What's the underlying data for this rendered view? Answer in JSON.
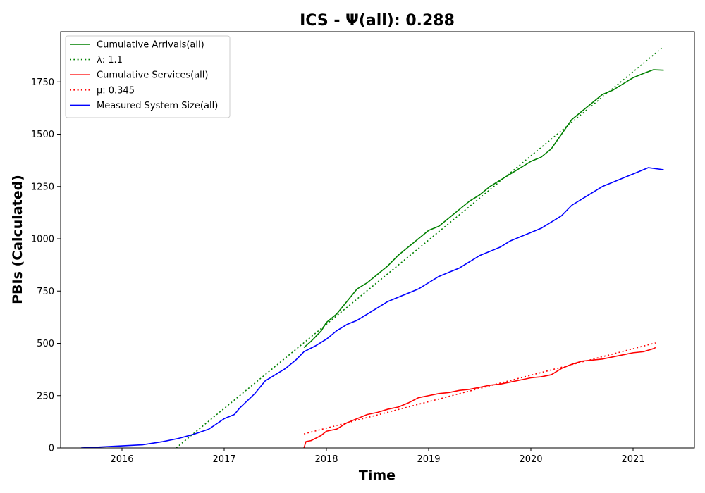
{
  "chart_data": {
    "type": "line",
    "title": "ICS -  Ψ(all): 0.288",
    "xlabel": "Time",
    "ylabel": "PBIs (Calculated)",
    "xlim": [
      2015.4,
      2021.6
    ],
    "ylim": [
      0,
      1990
    ],
    "x_ticks": [
      2016,
      2017,
      2018,
      2019,
      2020,
      2021
    ],
    "x_tick_labels": [
      "2016",
      "2017",
      "2018",
      "2019",
      "2020",
      "2021"
    ],
    "y_ticks": [
      0,
      250,
      500,
      750,
      1000,
      1250,
      1500,
      1750
    ],
    "y_tick_labels": [
      "0",
      "250",
      "500",
      "750",
      "1000",
      "1250",
      "1500",
      "1750"
    ],
    "grid": false,
    "legend_position": "top-left",
    "series": [
      {
        "name": "Cumulative Arrivals(all)",
        "color": "#008000",
        "style": "solid",
        "x": [
          2017.78,
          2017.85,
          2017.95,
          2018.0,
          2018.1,
          2018.2,
          2018.3,
          2018.4,
          2018.5,
          2018.6,
          2018.7,
          2018.8,
          2018.9,
          2019.0,
          2019.1,
          2019.2,
          2019.3,
          2019.4,
          2019.5,
          2019.6,
          2019.7,
          2019.8,
          2019.9,
          2020.0,
          2020.1,
          2020.2,
          2020.3,
          2020.4,
          2020.5,
          2020.6,
          2020.7,
          2020.8,
          2020.9,
          2021.0,
          2021.1,
          2021.2,
          2021.3
        ],
        "y": [
          480,
          510,
          560,
          600,
          640,
          700,
          760,
          790,
          830,
          870,
          920,
          960,
          1000,
          1040,
          1060,
          1100,
          1140,
          1180,
          1210,
          1250,
          1280,
          1310,
          1340,
          1370,
          1390,
          1430,
          1500,
          1570,
          1610,
          1650,
          1690,
          1710,
          1740,
          1770,
          1790,
          1808,
          1806
        ]
      },
      {
        "name": "λ: 1.1",
        "color": "#008000",
        "style": "dotted",
        "x": [
          2016.53,
          2021.29
        ],
        "y": [
          0,
          1915
        ]
      },
      {
        "name": "Cumulative Services(all)",
        "color": "#ff0000",
        "style": "solid",
        "x": [
          2017.78,
          2017.8,
          2017.85,
          2017.95,
          2018.0,
          2018.1,
          2018.2,
          2018.3,
          2018.4,
          2018.5,
          2018.6,
          2018.7,
          2018.8,
          2018.9,
          2019.0,
          2019.1,
          2019.2,
          2019.3,
          2019.4,
          2019.5,
          2019.6,
          2019.7,
          2019.8,
          2019.9,
          2020.0,
          2020.1,
          2020.2,
          2020.3,
          2020.4,
          2020.5,
          2020.6,
          2020.7,
          2020.8,
          2020.9,
          2021.0,
          2021.1,
          2021.2,
          2021.22
        ],
        "y": [
          0,
          30,
          35,
          60,
          80,
          90,
          120,
          140,
          160,
          170,
          185,
          195,
          215,
          240,
          250,
          260,
          265,
          275,
          280,
          290,
          300,
          305,
          315,
          325,
          335,
          340,
          350,
          380,
          400,
          415,
          420,
          425,
          435,
          445,
          455,
          460,
          475,
          480
        ]
      },
      {
        "name": "μ: 0.345",
        "color": "#ff0000",
        "style": "dotted",
        "x": [
          2017.78,
          2021.22
        ],
        "y": [
          67,
          502
        ]
      },
      {
        "name": "Measured System Size(all)",
        "color": "#0000ff",
        "style": "solid",
        "x": [
          2015.6,
          2015.8,
          2016.0,
          2016.2,
          2016.4,
          2016.55,
          2016.7,
          2016.85,
          2017.0,
          2017.1,
          2017.15,
          2017.3,
          2017.4,
          2017.5,
          2017.6,
          2017.7,
          2017.78,
          2017.9,
          2018.0,
          2018.1,
          2018.2,
          2018.3,
          2018.4,
          2018.5,
          2018.6,
          2018.7,
          2018.8,
          2018.9,
          2019.0,
          2019.1,
          2019.2,
          2019.3,
          2019.4,
          2019.5,
          2019.6,
          2019.7,
          2019.8,
          2019.9,
          2020.0,
          2020.1,
          2020.2,
          2020.3,
          2020.4,
          2020.5,
          2020.6,
          2020.7,
          2020.8,
          2020.9,
          2021.0,
          2021.1,
          2021.15,
          2021.3
        ],
        "y": [
          0,
          5,
          10,
          15,
          30,
          45,
          65,
          90,
          140,
          160,
          190,
          260,
          320,
          350,
          380,
          420,
          460,
          490,
          520,
          560,
          590,
          610,
          640,
          670,
          700,
          720,
          740,
          760,
          790,
          820,
          840,
          860,
          890,
          920,
          940,
          960,
          990,
          1010,
          1030,
          1050,
          1080,
          1110,
          1160,
          1190,
          1220,
          1250,
          1270,
          1290,
          1310,
          1330,
          1340,
          1330
        ]
      }
    ]
  }
}
